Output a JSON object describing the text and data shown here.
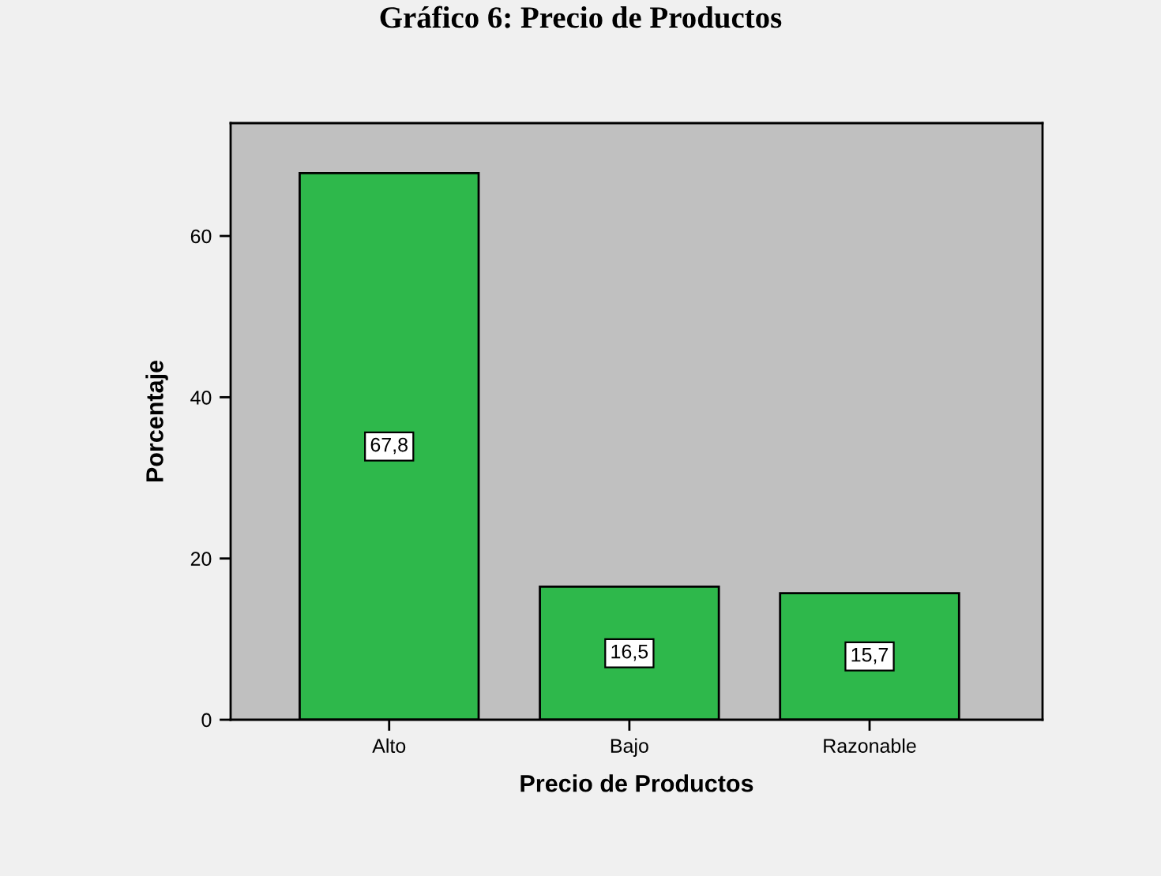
{
  "chart_data": {
    "type": "bar",
    "title": "Gráfico 6: Precio de Productos",
    "xlabel": "Precio de Productos",
    "ylabel": "Porcentaje",
    "categories": [
      "Alto",
      "Bajo",
      "Razonable"
    ],
    "values": [
      67.8,
      16.5,
      15.7
    ],
    "color": "#2eb84b",
    "value_labels": [
      "67,8",
      "16,5",
      "15,7"
    ],
    "ylim": [
      0,
      74
    ],
    "yticks": [
      0,
      20,
      40,
      60
    ]
  }
}
